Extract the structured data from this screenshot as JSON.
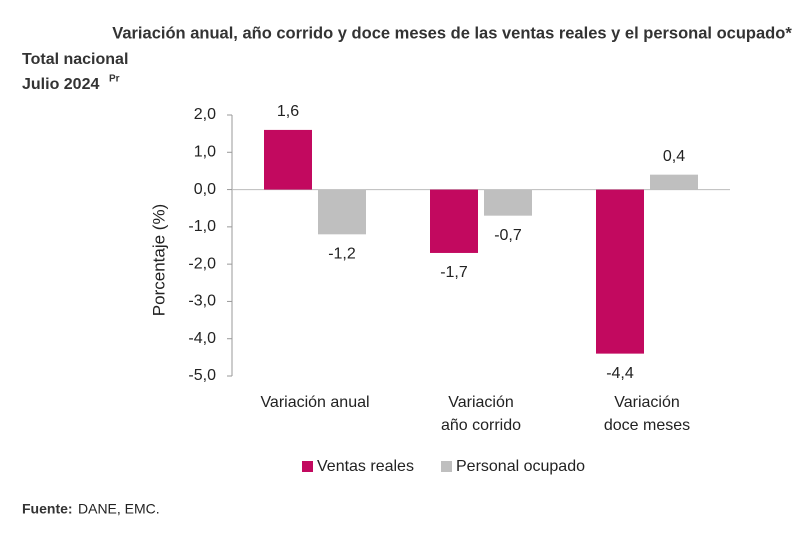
{
  "chart_data": {
    "type": "bar",
    "title": "Variación anual, año corrido y doce meses de las ventas reales y el personal ocupado*",
    "subtitle": [
      "Total nacional",
      "Julio 2024"
    ],
    "subtitle_note": "Pr",
    "y_label": "Porcentaje (%)",
    "categories": [
      [
        "Variación anual"
      ],
      [
        "Variación",
        "año corrido"
      ],
      [
        "Variación",
        "doce meses"
      ]
    ],
    "series": [
      {
        "name": "Ventas reales",
        "color": "#c2095f",
        "values": [
          1.6,
          -1.7,
          -4.4
        ],
        "value_labels": [
          "1,6",
          "-1,7",
          "-4,4"
        ]
      },
      {
        "name": "Personal ocupado",
        "color": "#bfbfbf",
        "values": [
          -1.2,
          -0.7,
          0.4
        ],
        "value_labels": [
          "-1,2",
          "-0,7",
          "0,4"
        ]
      }
    ],
    "ylim": [
      -5,
      2
    ],
    "yticks": [
      {
        "value": -5,
        "label": "-5,0"
      },
      {
        "value": -4,
        "label": "-4,0"
      },
      {
        "value": -3,
        "label": "-3,0"
      },
      {
        "value": -2,
        "label": "-2,0"
      },
      {
        "value": -1,
        "label": "-1,0"
      },
      {
        "value": 0,
        "label": "0,0"
      },
      {
        "value": 1,
        "label": "1,0"
      },
      {
        "value": 2,
        "label": "2,0"
      }
    ],
    "legend": "bottom",
    "source_label": "Fuente:",
    "source": "DANE, EMC."
  }
}
